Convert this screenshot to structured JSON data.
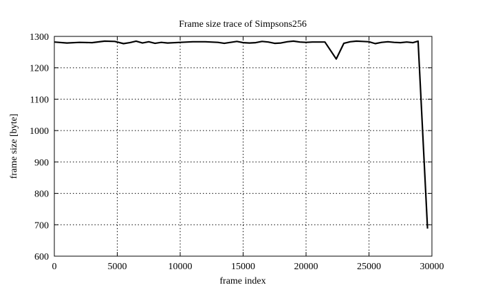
{
  "chart_data": {
    "type": "line",
    "title": "Frame size trace of Simpsons256",
    "xlabel": "frame index",
    "ylabel": "frame size [byte]",
    "xlim": [
      0,
      30000
    ],
    "ylim": [
      600,
      1300
    ],
    "xticks": [
      0,
      5000,
      10000,
      15000,
      20000,
      25000,
      30000
    ],
    "yticks": [
      600,
      700,
      800,
      900,
      1000,
      1100,
      1200,
      1300
    ],
    "grid": true,
    "series": [
      {
        "name": "Simpsons256",
        "color": "#000000",
        "x": [
          0,
          1000,
          2000,
          3000,
          4000,
          4800,
          5500,
          6000,
          6500,
          7000,
          7500,
          8000,
          8500,
          9000,
          10000,
          11000,
          12000,
          13000,
          13500,
          14000,
          14500,
          15000,
          15500,
          16000,
          16500,
          17000,
          17500,
          18000,
          18500,
          19000,
          19500,
          20000,
          20500,
          21000,
          21500,
          22400,
          23000,
          23500,
          24000,
          24500,
          25000,
          25500,
          26000,
          26500,
          27000,
          27500,
          28000,
          28500,
          28900,
          29650
        ],
        "y": [
          1282,
          1279,
          1281,
          1280,
          1285,
          1284,
          1277,
          1280,
          1285,
          1279,
          1283,
          1278,
          1281,
          1279,
          1281,
          1283,
          1283,
          1281,
          1278,
          1281,
          1284,
          1280,
          1279,
          1280,
          1284,
          1282,
          1278,
          1279,
          1283,
          1285,
          1282,
          1281,
          1282,
          1282,
          1282,
          1228,
          1278,
          1283,
          1285,
          1284,
          1283,
          1277,
          1281,
          1283,
          1281,
          1280,
          1282,
          1280,
          1285,
          688
        ]
      }
    ]
  }
}
